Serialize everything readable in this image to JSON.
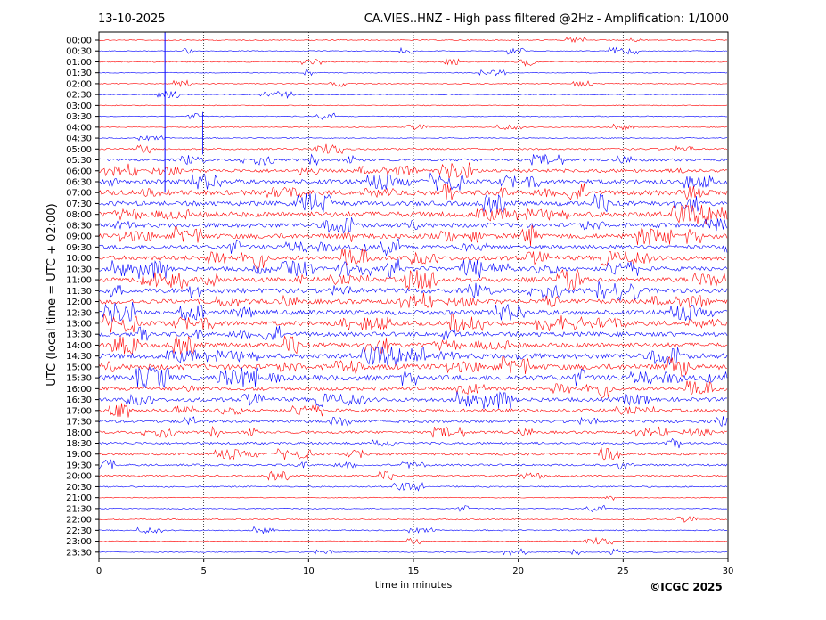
{
  "chart_data": {
    "type": "line",
    "date": "13-10-2025",
    "title": "CA.VIES..HNZ - High pass filtered @2Hz - Amplification: 1/1000",
    "xlabel": "time in minutes",
    "ylabel": "UTC (local time = UTC + 02:00)",
    "xlim": [
      0,
      30
    ],
    "x_ticks": [
      0,
      5,
      10,
      15,
      20,
      25,
      30
    ],
    "row_labels": [
      "00:00",
      "00:30",
      "01:00",
      "01:30",
      "02:00",
      "02:30",
      "03:00",
      "03:30",
      "04:00",
      "04:30",
      "05:00",
      "05:30",
      "06:00",
      "06:30",
      "07:00",
      "07:30",
      "08:00",
      "08:30",
      "09:00",
      "09:30",
      "10:00",
      "10:30",
      "11:00",
      "11:30",
      "12:00",
      "12:30",
      "13:00",
      "13:30",
      "14:00",
      "14:30",
      "15:00",
      "15:30",
      "16:00",
      "16:30",
      "17:00",
      "17:30",
      "18:00",
      "18:30",
      "19:00",
      "19:30",
      "20:00",
      "20:30",
      "21:00",
      "21:30",
      "22:00",
      "22:30",
      "23:00",
      "23:30"
    ],
    "trace_colors": [
      "#ff0000",
      "#0000ff"
    ],
    "grid_x": true,
    "activity": [
      0.3,
      0.3,
      0.4,
      0.3,
      0.3,
      0.3,
      0.3,
      0.3,
      0.3,
      0.3,
      0.6,
      0.9,
      1.2,
      1.5,
      1.7,
      1.6,
      1.8,
      1.6,
      1.7,
      1.4,
      1.6,
      1.5,
      1.6,
      1.7,
      1.6,
      1.6,
      1.6,
      1.5,
      1.6,
      1.8,
      1.9,
      1.8,
      1.3,
      1.4,
      1.1,
      1.0,
      0.9,
      0.8,
      0.8,
      0.7,
      0.6,
      0.5,
      0.3,
      0.3,
      0.4,
      0.4,
      0.3,
      0.3
    ]
  },
  "copyright": "©ICGC 2025"
}
